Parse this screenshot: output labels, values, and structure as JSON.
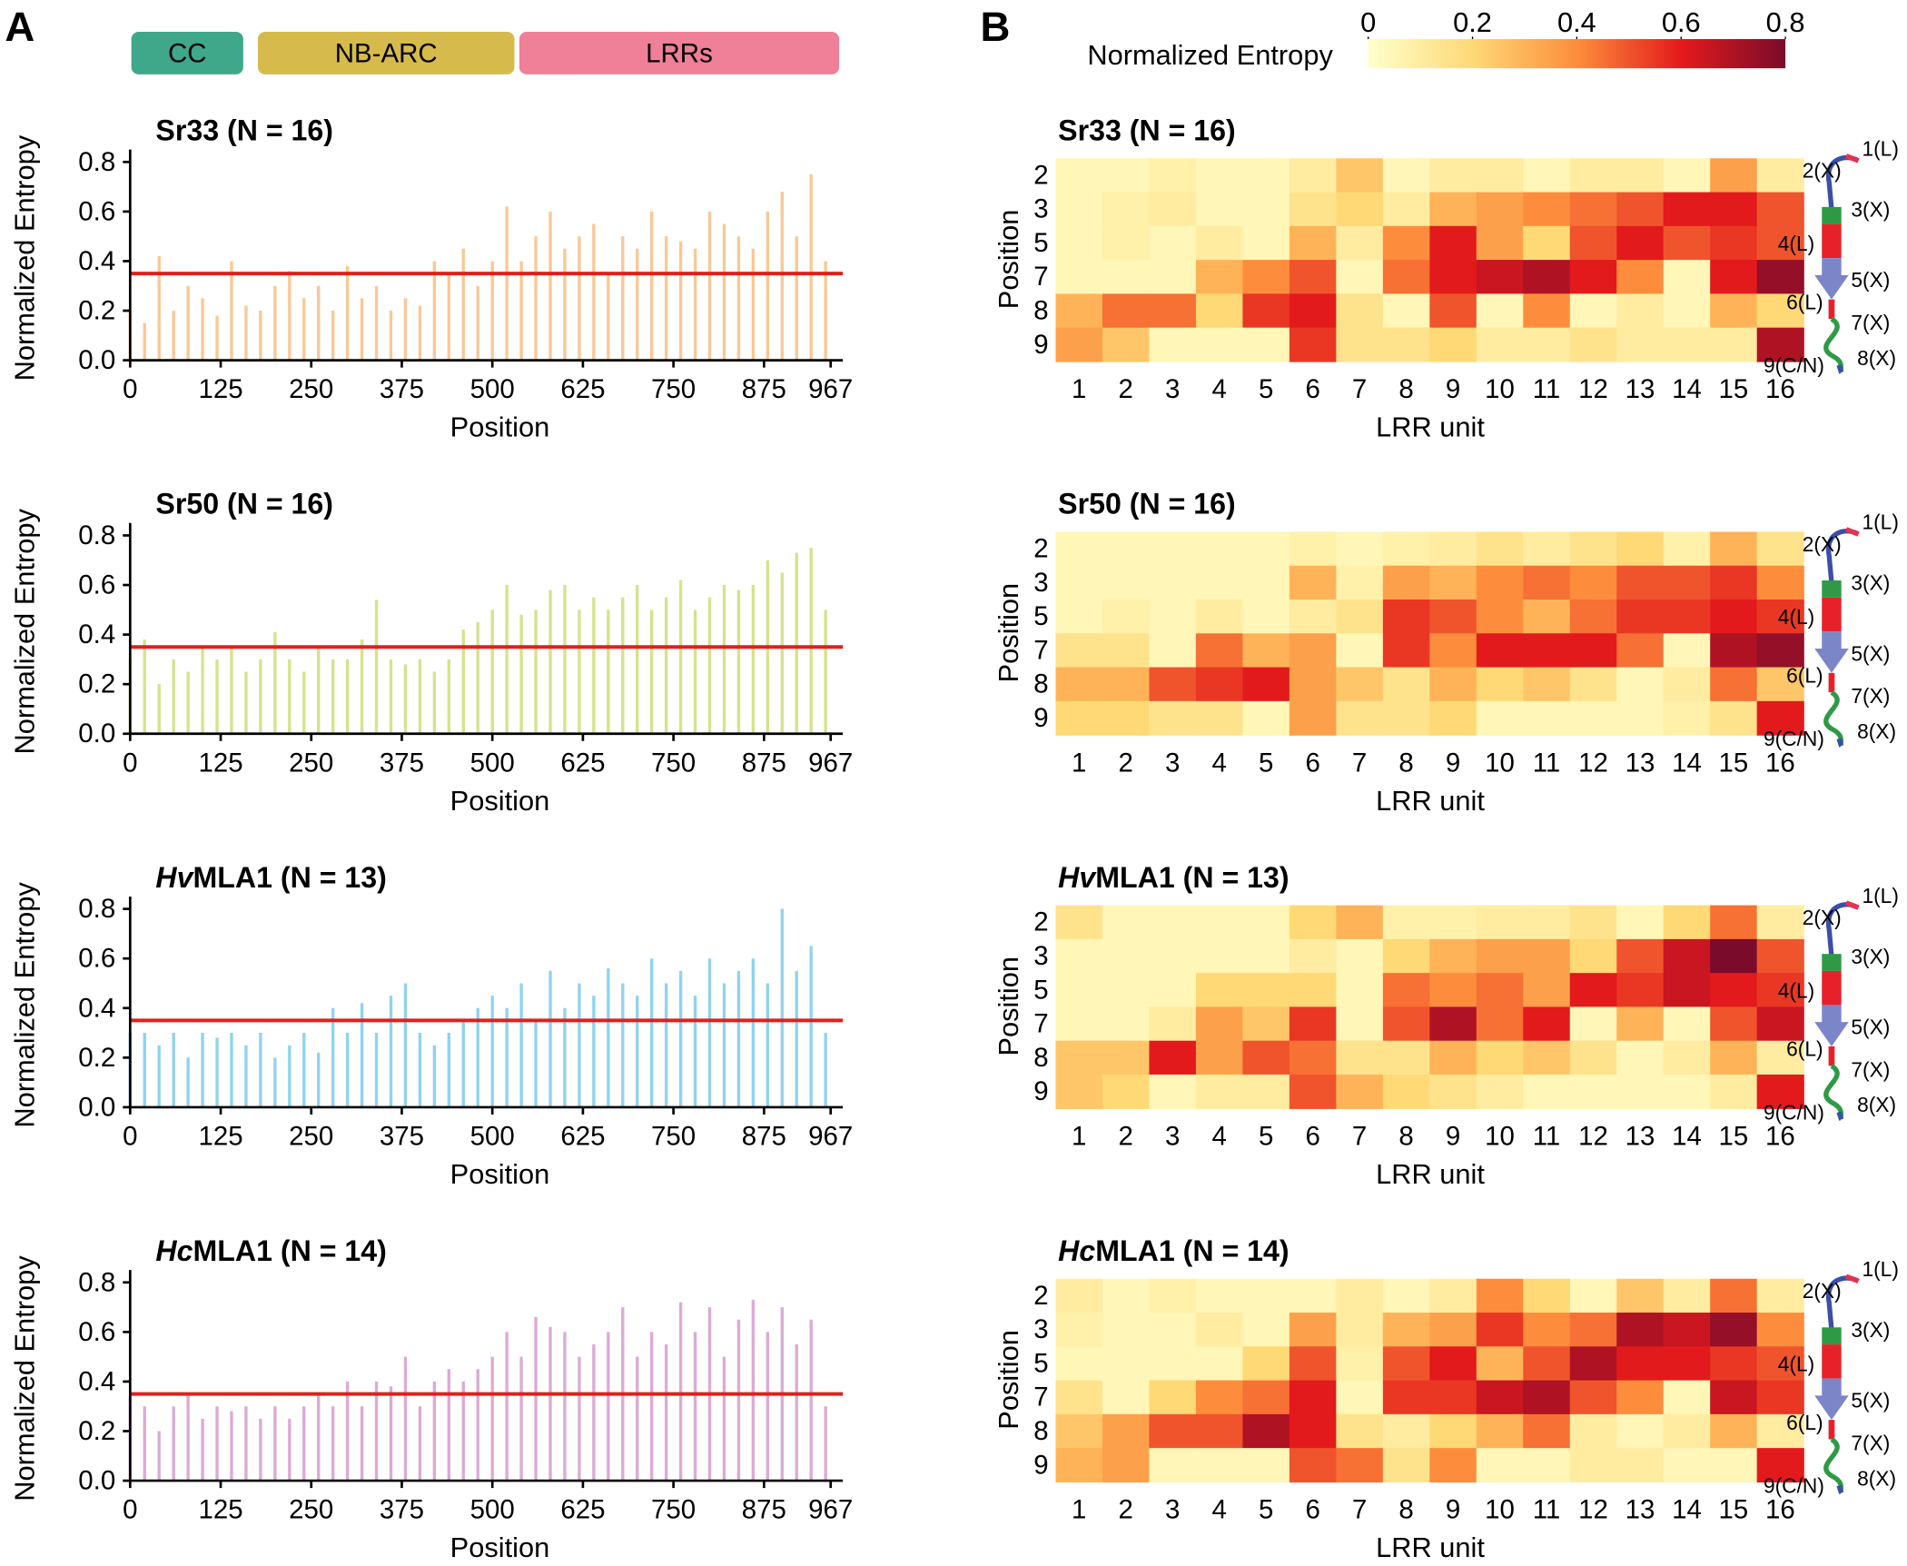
{
  "panels": [
    "A",
    "B"
  ],
  "domains": [
    {
      "name": "CC",
      "color": "#3fa78a"
    },
    {
      "name": "NB-ARC",
      "color": "#d6bb4c"
    },
    {
      "name": "LRRs",
      "color": "#f07f98"
    }
  ],
  "colorbar": {
    "label": "Normalized Entropy",
    "lim": [
      0,
      0.8
    ],
    "ticks": [
      0,
      0.2,
      0.4,
      0.6,
      0.8
    ],
    "colormap": [
      "#ffffcc",
      "#fed976",
      "#fd8d3c",
      "#e31a1c",
      "#7a0b2a"
    ]
  },
  "lrr_diagram": {
    "labels": [
      "1(L)",
      "2(X)",
      "3(X)",
      "4(L)",
      "5(X)",
      "6(L)",
      "7(X)",
      "8(X)",
      "9(C/N)"
    ],
    "colors": [
      "#000000",
      "#e8304f",
      "#e8304f",
      "#000000",
      "#e8304f",
      "#000000",
      "#e8304f",
      "#e8304f",
      "#e8304f"
    ]
  },
  "chart_data": [
    {
      "type": "bar",
      "title": "Sr33 (N = 16)",
      "title_color": "#d4912f",
      "color": "#f9c896",
      "x_label": "Position",
      "y_label": "Normalized Entropy",
      "threshold": 0.35,
      "threshold_color": "#e0201b",
      "xlim": [
        0,
        967
      ],
      "xticks": [
        0,
        125,
        250,
        375,
        500,
        625,
        750,
        875,
        967
      ],
      "ylim": [
        0,
        0.85
      ],
      "yticks": [
        {
          "value": 0,
          "label": "0.0"
        },
        0.2,
        0.4,
        0.6,
        0.8
      ],
      "x": [
        0,
        20,
        40,
        60,
        80,
        100,
        120,
        140,
        160,
        180,
        200,
        220,
        240,
        260,
        280,
        300,
        320,
        340,
        360,
        380,
        400,
        420,
        440,
        460,
        480,
        500,
        520,
        540,
        560,
        580,
        600,
        620,
        640,
        660,
        680,
        700,
        720,
        740,
        760,
        780,
        800,
        820,
        840,
        860,
        880,
        900,
        920,
        940,
        960
      ],
      "values": [
        0.2,
        0.15,
        0.42,
        0.2,
        0.3,
        0.25,
        0.18,
        0.4,
        0.22,
        0.2,
        0.3,
        0.36,
        0.25,
        0.3,
        0.2,
        0.38,
        0.25,
        0.3,
        0.2,
        0.25,
        0.22,
        0.4,
        0.35,
        0.45,
        0.3,
        0.4,
        0.62,
        0.4,
        0.5,
        0.6,
        0.45,
        0.5,
        0.55,
        0.35,
        0.5,
        0.45,
        0.6,
        0.5,
        0.48,
        0.45,
        0.6,
        0.55,
        0.5,
        0.45,
        0.6,
        0.68,
        0.5,
        0.75,
        0.4
      ]
    },
    {
      "type": "bar",
      "title": "Sr50 (N = 16)",
      "title_color": "#8fb339",
      "color": "#d4e38c",
      "x_label": "Position",
      "y_label": "Normalized Entropy",
      "threshold": 0.35,
      "threshold_color": "#e0201b",
      "xlim": [
        0,
        967
      ],
      "xticks": [
        0,
        125,
        250,
        375,
        500,
        625,
        750,
        875,
        967
      ],
      "ylim": [
        0,
        0.85
      ],
      "yticks": [
        {
          "value": 0,
          "label": "0.0"
        },
        0.2,
        0.4,
        0.6,
        0.8
      ],
      "x": [
        0,
        20,
        40,
        60,
        80,
        100,
        120,
        140,
        160,
        180,
        200,
        220,
        240,
        260,
        280,
        300,
        320,
        340,
        360,
        380,
        400,
        420,
        440,
        460,
        480,
        500,
        520,
        540,
        560,
        580,
        600,
        620,
        640,
        660,
        680,
        700,
        720,
        740,
        760,
        780,
        800,
        820,
        840,
        860,
        880,
        900,
        920,
        940,
        960
      ],
      "values": [
        0.3,
        0.38,
        0.2,
        0.3,
        0.25,
        0.35,
        0.3,
        0.35,
        0.25,
        0.3,
        0.41,
        0.3,
        0.25,
        0.35,
        0.3,
        0.3,
        0.38,
        0.54,
        0.3,
        0.28,
        0.3,
        0.25,
        0.3,
        0.42,
        0.45,
        0.5,
        0.6,
        0.48,
        0.5,
        0.58,
        0.6,
        0.5,
        0.55,
        0.5,
        0.55,
        0.6,
        0.5,
        0.55,
        0.62,
        0.5,
        0.55,
        0.6,
        0.58,
        0.6,
        0.7,
        0.65,
        0.73,
        0.75,
        0.5
      ]
    },
    {
      "type": "bar",
      "title_italic": "Hv",
      "title": "MLA1 (N = 13)",
      "title_color": "#3aa0d4",
      "color": "#8fd3ef",
      "x_label": "Position",
      "y_label": "Normalized Entropy",
      "threshold": 0.35,
      "threshold_color": "#e0201b",
      "xlim": [
        0,
        967
      ],
      "xticks": [
        0,
        125,
        250,
        375,
        500,
        625,
        750,
        875,
        967
      ],
      "ylim": [
        0,
        0.85
      ],
      "yticks": [
        {
          "value": 0,
          "label": "0.0"
        },
        0.2,
        0.4,
        0.6,
        0.8
      ],
      "x": [
        0,
        20,
        40,
        60,
        80,
        100,
        120,
        140,
        160,
        180,
        200,
        220,
        240,
        260,
        280,
        300,
        320,
        340,
        360,
        380,
        400,
        420,
        440,
        460,
        480,
        500,
        520,
        540,
        560,
        580,
        600,
        620,
        640,
        660,
        680,
        700,
        720,
        740,
        760,
        780,
        800,
        820,
        840,
        860,
        880,
        900,
        920,
        940,
        960
      ],
      "values": [
        0.3,
        0.3,
        0.25,
        0.3,
        0.2,
        0.3,
        0.28,
        0.3,
        0.25,
        0.3,
        0.2,
        0.25,
        0.3,
        0.22,
        0.4,
        0.3,
        0.42,
        0.3,
        0.45,
        0.5,
        0.3,
        0.25,
        0.3,
        0.35,
        0.4,
        0.45,
        0.4,
        0.5,
        0.35,
        0.55,
        0.4,
        0.5,
        0.45,
        0.56,
        0.5,
        0.45,
        0.6,
        0.5,
        0.55,
        0.45,
        0.6,
        0.5,
        0.55,
        0.6,
        0.5,
        0.8,
        0.55,
        0.65,
        0.3
      ]
    },
    {
      "type": "bar",
      "title_italic": "Hc",
      "title": "MLA1 (N = 14)",
      "title_color": "#a262b3",
      "color": "#dcaad6",
      "x_label": "Position",
      "y_label": "Normalized Entropy",
      "threshold": 0.35,
      "threshold_color": "#e0201b",
      "xlim": [
        0,
        967
      ],
      "xticks": [
        0,
        125,
        250,
        375,
        500,
        625,
        750,
        875,
        967
      ],
      "ylim": [
        0,
        0.85
      ],
      "yticks": [
        {
          "value": 0,
          "label": "0.0"
        },
        0.2,
        0.4,
        0.6,
        0.8
      ],
      "x": [
        0,
        20,
        40,
        60,
        80,
        100,
        120,
        140,
        160,
        180,
        200,
        220,
        240,
        260,
        280,
        300,
        320,
        340,
        360,
        380,
        400,
        420,
        440,
        460,
        480,
        500,
        520,
        540,
        560,
        580,
        600,
        620,
        640,
        660,
        680,
        700,
        720,
        740,
        760,
        780,
        800,
        820,
        840,
        860,
        880,
        900,
        920,
        940,
        960
      ],
      "values": [
        0.34,
        0.3,
        0.2,
        0.3,
        0.35,
        0.25,
        0.3,
        0.28,
        0.3,
        0.25,
        0.3,
        0.25,
        0.3,
        0.35,
        0.3,
        0.4,
        0.3,
        0.4,
        0.38,
        0.5,
        0.3,
        0.4,
        0.45,
        0.4,
        0.45,
        0.5,
        0.6,
        0.5,
        0.66,
        0.62,
        0.6,
        0.5,
        0.55,
        0.6,
        0.7,
        0.5,
        0.6,
        0.55,
        0.72,
        0.6,
        0.7,
        0.5,
        0.65,
        0.73,
        0.6,
        0.7,
        0.55,
        0.65,
        0.3
      ]
    },
    {
      "type": "heatmap",
      "title": "Sr33 (N = 16)",
      "title_color": "#d4912f",
      "x_label": "LRR unit",
      "y_label": "Position",
      "x_categories": [
        1,
        2,
        3,
        4,
        5,
        6,
        7,
        8,
        9,
        10,
        11,
        12,
        13,
        14,
        15,
        16
      ],
      "y_categories": [
        2,
        3,
        5,
        7,
        8,
        9
      ],
      "values": [
        [
          0.05,
          0.05,
          0.08,
          0.05,
          0.05,
          0.1,
          0.25,
          0.05,
          0.1,
          0.1,
          0.05,
          0.1,
          0.1,
          0.05,
          0.35,
          0.1
        ],
        [
          0.05,
          0.08,
          0.1,
          0.05,
          0.05,
          0.15,
          0.2,
          0.1,
          0.3,
          0.35,
          0.4,
          0.45,
          0.5,
          0.6,
          0.6,
          0.5
        ],
        [
          0.05,
          0.08,
          0.05,
          0.1,
          0.05,
          0.3,
          0.1,
          0.4,
          0.6,
          0.35,
          0.2,
          0.5,
          0.6,
          0.5,
          0.55,
          0.5
        ],
        [
          0.05,
          0.05,
          0.05,
          0.3,
          0.4,
          0.5,
          0.05,
          0.45,
          0.6,
          0.65,
          0.7,
          0.6,
          0.4,
          0.05,
          0.6,
          0.75
        ],
        [
          0.3,
          0.45,
          0.45,
          0.2,
          0.55,
          0.6,
          0.15,
          0.05,
          0.5,
          0.05,
          0.4,
          0.05,
          0.1,
          0.05,
          0.3,
          0.2
        ],
        [
          0.35,
          0.25,
          0.05,
          0.05,
          0.05,
          0.55,
          0.15,
          0.15,
          0.2,
          0.1,
          0.1,
          0.15,
          0.1,
          0.1,
          0.1,
          0.7
        ]
      ]
    },
    {
      "type": "heatmap",
      "title": "Sr50 (N = 16)",
      "title_color": "#8fb339",
      "x_label": "LRR unit",
      "y_label": "Position",
      "x_categories": [
        1,
        2,
        3,
        4,
        5,
        6,
        7,
        8,
        9,
        10,
        11,
        12,
        13,
        14,
        15,
        16
      ],
      "y_categories": [
        2,
        3,
        5,
        7,
        8,
        9
      ],
      "values": [
        [
          0.05,
          0.05,
          0.05,
          0.05,
          0.05,
          0.08,
          0.05,
          0.08,
          0.1,
          0.15,
          0.1,
          0.15,
          0.2,
          0.08,
          0.3,
          0.15
        ],
        [
          0.05,
          0.05,
          0.05,
          0.05,
          0.05,
          0.3,
          0.08,
          0.35,
          0.3,
          0.4,
          0.45,
          0.4,
          0.5,
          0.5,
          0.55,
          0.4
        ],
        [
          0.05,
          0.08,
          0.05,
          0.1,
          0.05,
          0.1,
          0.15,
          0.55,
          0.5,
          0.4,
          0.3,
          0.45,
          0.55,
          0.55,
          0.6,
          0.55
        ],
        [
          0.15,
          0.15,
          0.05,
          0.45,
          0.3,
          0.35,
          0.05,
          0.55,
          0.4,
          0.6,
          0.6,
          0.6,
          0.45,
          0.05,
          0.7,
          0.75
        ],
        [
          0.3,
          0.3,
          0.5,
          0.55,
          0.6,
          0.35,
          0.25,
          0.15,
          0.3,
          0.2,
          0.25,
          0.15,
          0.05,
          0.1,
          0.45,
          0.25
        ],
        [
          0.2,
          0.2,
          0.15,
          0.15,
          0.05,
          0.35,
          0.15,
          0.15,
          0.2,
          0.05,
          0.05,
          0.05,
          0.05,
          0.08,
          0.15,
          0.6
        ]
      ]
    },
    {
      "type": "heatmap",
      "title_italic": "Hv",
      "title": "MLA1 (N = 13)",
      "title_color": "#3aa0d4",
      "x_label": "LRR unit",
      "y_label": "Position",
      "x_categories": [
        1,
        2,
        3,
        4,
        5,
        6,
        7,
        8,
        9,
        10,
        11,
        12,
        13,
        14,
        15,
        16
      ],
      "y_categories": [
        2,
        3,
        5,
        7,
        8,
        9
      ],
      "values": [
        [
          0.15,
          0.05,
          0.05,
          0.05,
          0.05,
          0.2,
          0.3,
          0.08,
          0.08,
          0.1,
          0.1,
          0.15,
          0.05,
          0.2,
          0.45,
          0.1
        ],
        [
          0.05,
          0.05,
          0.05,
          0.05,
          0.05,
          0.1,
          0.05,
          0.2,
          0.3,
          0.35,
          0.35,
          0.2,
          0.5,
          0.65,
          0.8,
          0.5
        ],
        [
          0.05,
          0.05,
          0.05,
          0.2,
          0.2,
          0.2,
          0.05,
          0.45,
          0.4,
          0.45,
          0.35,
          0.6,
          0.55,
          0.65,
          0.6,
          0.55
        ],
        [
          0.05,
          0.05,
          0.1,
          0.35,
          0.25,
          0.55,
          0.05,
          0.5,
          0.7,
          0.45,
          0.6,
          0.05,
          0.3,
          0.05,
          0.5,
          0.65
        ],
        [
          0.25,
          0.25,
          0.6,
          0.35,
          0.5,
          0.45,
          0.15,
          0.15,
          0.3,
          0.2,
          0.25,
          0.15,
          0.05,
          0.1,
          0.3,
          0.1
        ],
        [
          0.25,
          0.2,
          0.05,
          0.1,
          0.1,
          0.5,
          0.3,
          0.2,
          0.15,
          0.1,
          0.05,
          0.05,
          0.05,
          0.05,
          0.1,
          0.6
        ]
      ]
    },
    {
      "type": "heatmap",
      "title_italic": "Hc",
      "title": "MLA1 (N = 14)",
      "title_color": "#a262b3",
      "x_label": "LRR unit",
      "y_label": "Position",
      "x_categories": [
        1,
        2,
        3,
        4,
        5,
        6,
        7,
        8,
        9,
        10,
        11,
        12,
        13,
        14,
        15,
        16
      ],
      "y_categories": [
        2,
        3,
        5,
        7,
        8,
        9
      ],
      "values": [
        [
          0.1,
          0.05,
          0.08,
          0.05,
          0.05,
          0.05,
          0.1,
          0.05,
          0.1,
          0.4,
          0.2,
          0.05,
          0.25,
          0.1,
          0.45,
          0.1
        ],
        [
          0.08,
          0.05,
          0.05,
          0.1,
          0.05,
          0.35,
          0.1,
          0.3,
          0.35,
          0.55,
          0.4,
          0.45,
          0.7,
          0.65,
          0.75,
          0.4
        ],
        [
          0.05,
          0.05,
          0.05,
          0.05,
          0.2,
          0.5,
          0.08,
          0.5,
          0.6,
          0.3,
          0.5,
          0.7,
          0.6,
          0.6,
          0.55,
          0.5
        ],
        [
          0.15,
          0.05,
          0.2,
          0.4,
          0.45,
          0.6,
          0.05,
          0.55,
          0.55,
          0.65,
          0.7,
          0.5,
          0.4,
          0.05,
          0.65,
          0.55
        ],
        [
          0.25,
          0.35,
          0.5,
          0.5,
          0.7,
          0.6,
          0.15,
          0.1,
          0.2,
          0.3,
          0.45,
          0.1,
          0.05,
          0.1,
          0.3,
          0.1
        ],
        [
          0.3,
          0.35,
          0.05,
          0.05,
          0.05,
          0.5,
          0.45,
          0.15,
          0.4,
          0.05,
          0.05,
          0.1,
          0.1,
          0.05,
          0.05,
          0.6
        ]
      ]
    }
  ]
}
